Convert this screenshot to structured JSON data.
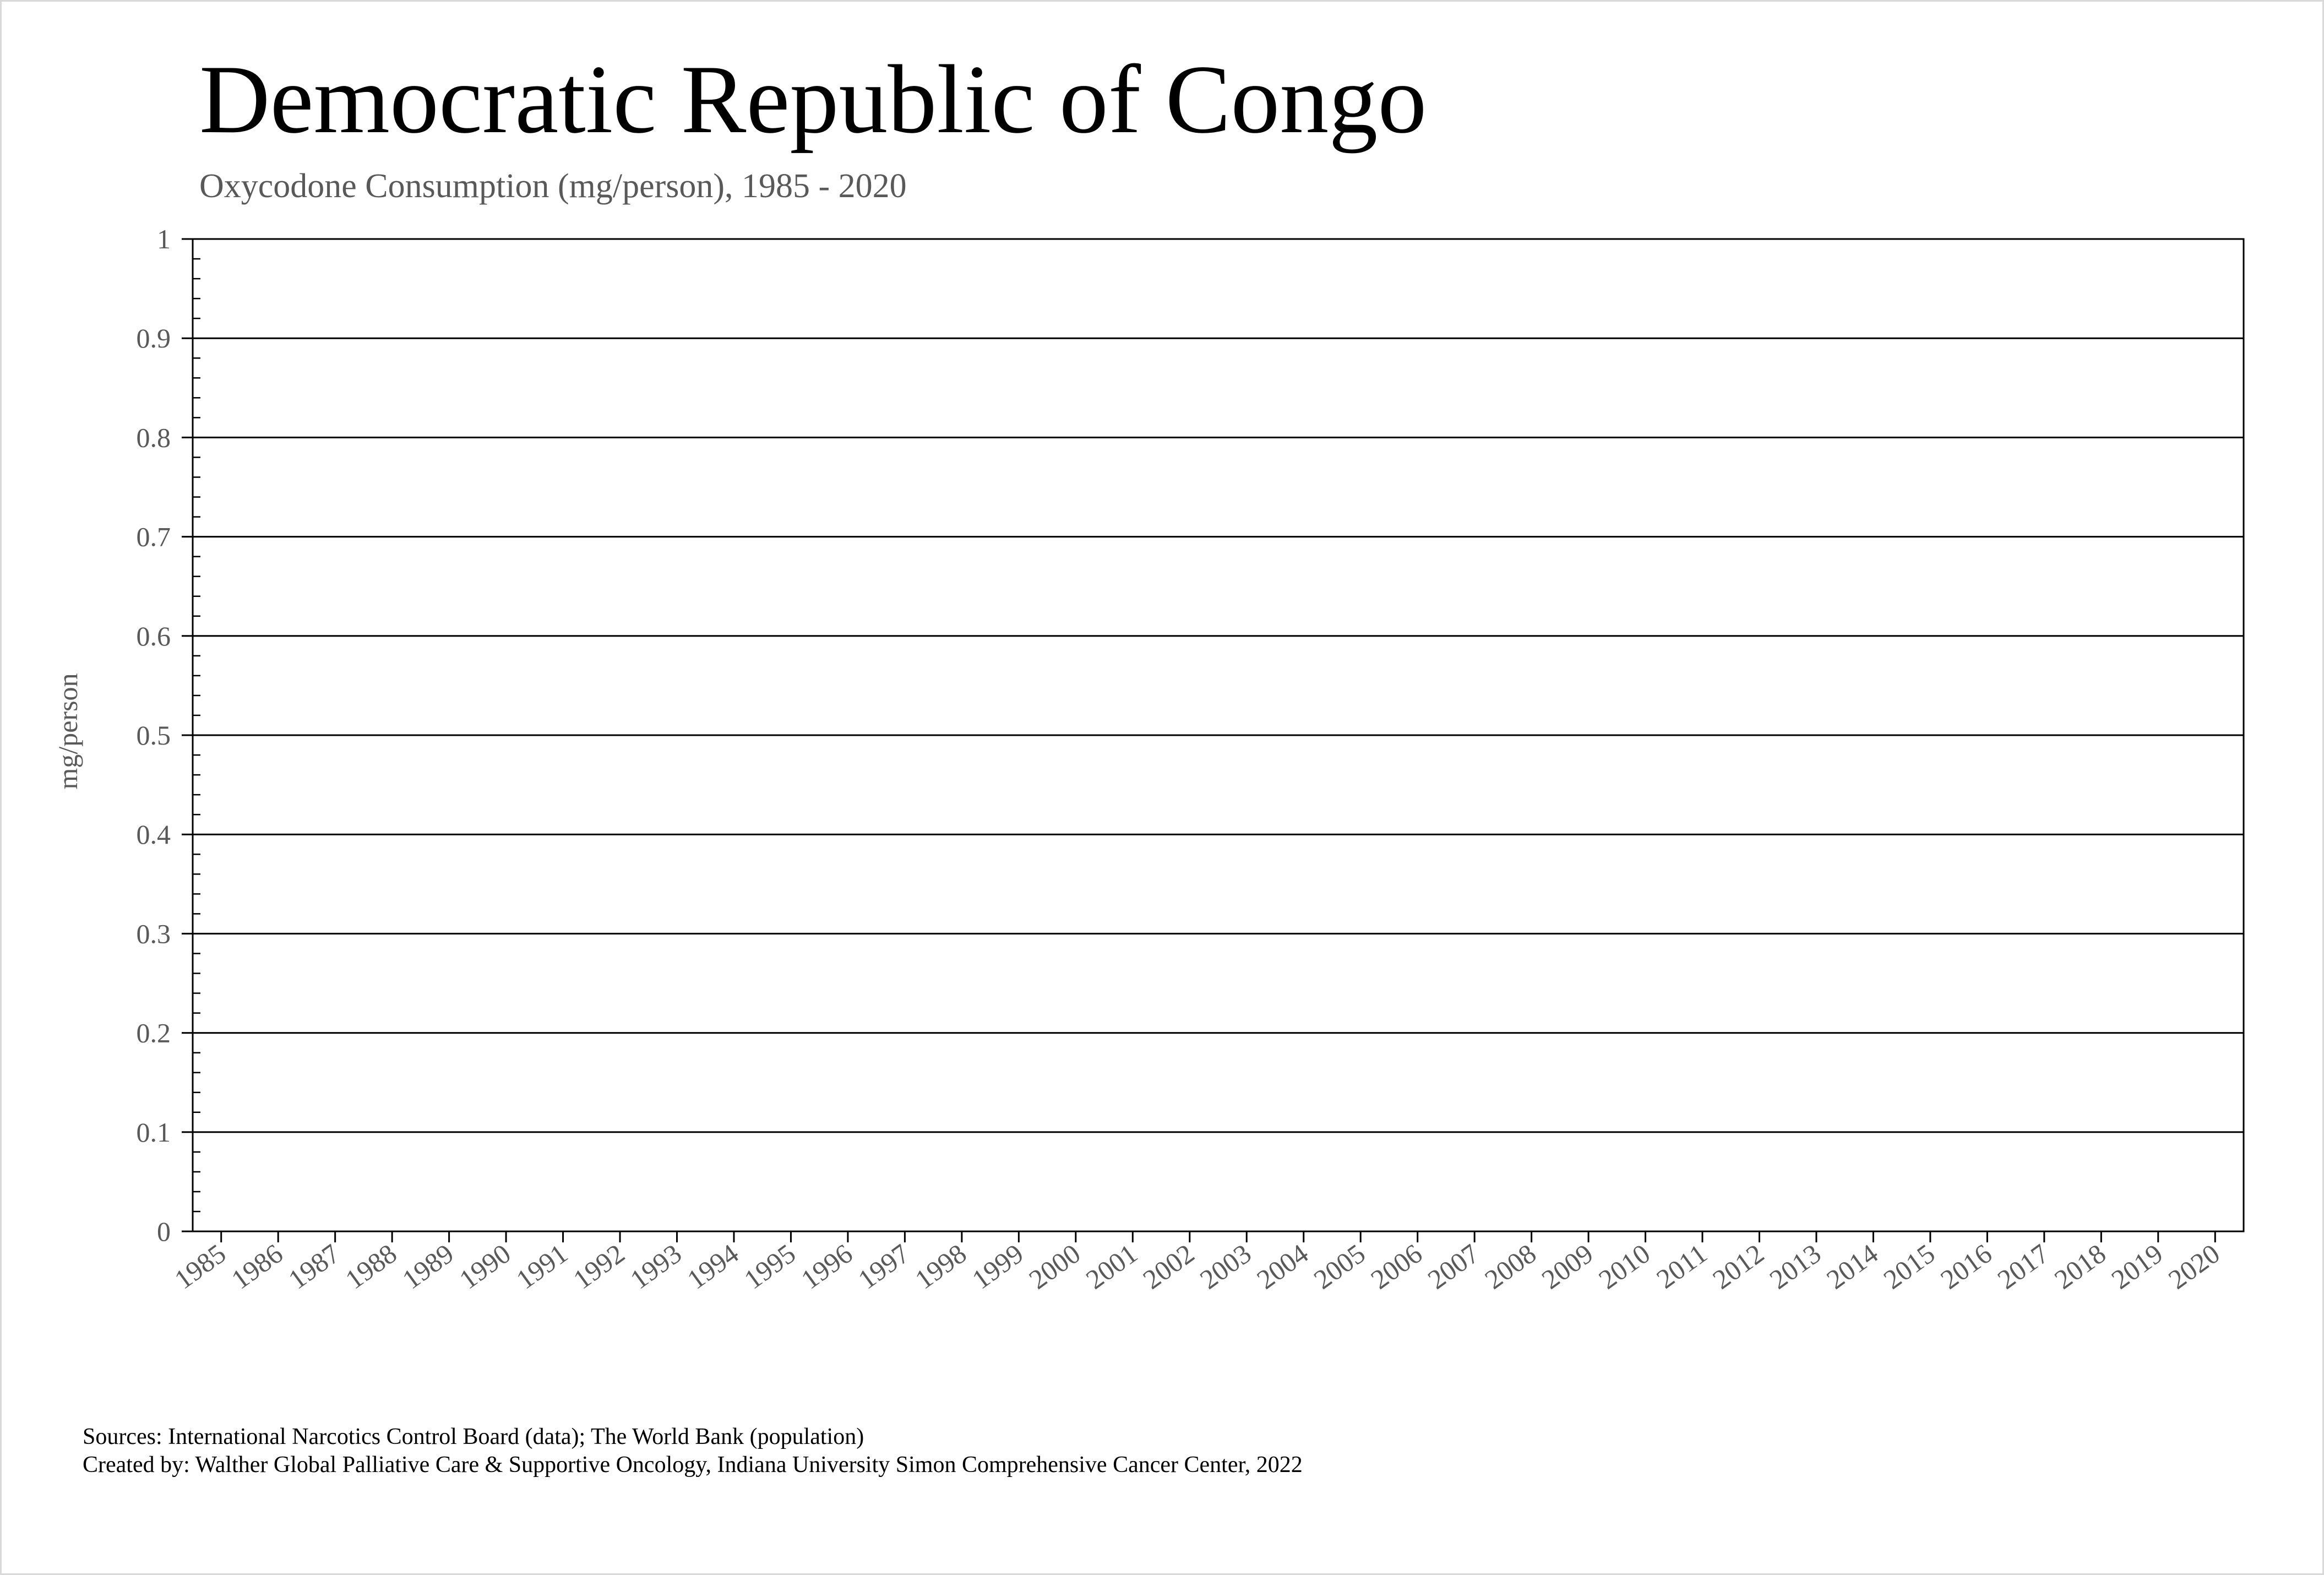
{
  "chart_data": {
    "type": "line",
    "title": "Democratic Republic of Congo",
    "subtitle": "Oxycodone Consumption (mg/person), 1985 - 2020",
    "xlabel": "",
    "ylabel": "mg/person",
    "categories": [
      "1985",
      "1986",
      "1987",
      "1988",
      "1989",
      "1990",
      "1991",
      "1992",
      "1993",
      "1994",
      "1995",
      "1996",
      "1997",
      "1998",
      "1999",
      "2000",
      "2001",
      "2002",
      "2003",
      "2004",
      "2005",
      "2006",
      "2007",
      "2008",
      "2009",
      "2010",
      "2011",
      "2012",
      "2013",
      "2014",
      "2015",
      "2016",
      "2017",
      "2018",
      "2019",
      "2020"
    ],
    "series": [],
    "ylim": [
      0,
      1
    ],
    "yticks": [
      "0",
      "0.1",
      "0.2",
      "0.3",
      "0.4",
      "0.5",
      "0.6",
      "0.7",
      "0.8",
      "0.9",
      "1"
    ],
    "grid": true,
    "legend": "none"
  },
  "footer": {
    "sources": "Sources: International Narcotics Control Board (data); The World Bank (population)",
    "created_by": "Created by: Walther Global Palliative Care & Supportive Oncology, Indiana University Simon Comprehensive Cancer Center, 2022"
  },
  "colors": {
    "text": "#000000",
    "muted_text": "#595959",
    "gridline": "#000000",
    "frame_border": "#d9d9d9"
  }
}
